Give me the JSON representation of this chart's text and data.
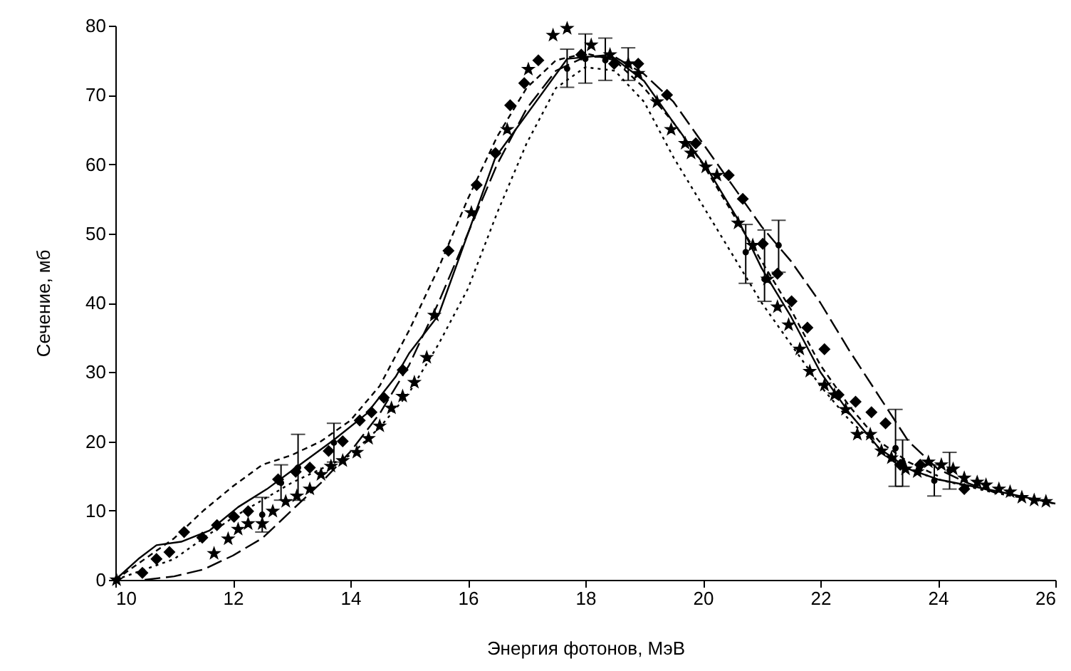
{
  "chart_data": {
    "type": "scatter",
    "xlabel": "Энергия фотонов, МэВ",
    "ylabel": "Сечение, мб",
    "xlim": [
      10,
      26
    ],
    "ylim": [
      0,
      80
    ],
    "xticks": [
      10,
      12,
      14,
      16,
      18,
      20,
      22,
      24,
      26
    ],
    "yticks": [
      0,
      10,
      20,
      30,
      40,
      50,
      60,
      70,
      80
    ],
    "grid": false,
    "series": [
      {
        "type": "line",
        "color": "#000000",
        "line_style": "solid",
        "marker": "none",
        "x": [
          10,
          10.39,
          10.7,
          11.12,
          11.6,
          12.09,
          12.58,
          13.14,
          13.72,
          14.28,
          14.77,
          15.0,
          15.5,
          16.47,
          17.69,
          18.42,
          19.0,
          19.5,
          20.1,
          20.6,
          21.0,
          21.5,
          22.0,
          22.5,
          23.0,
          23.5,
          24.0,
          25.0,
          26.0
        ],
        "values": [
          0,
          3,
          5,
          5.5,
          7.1,
          10.5,
          13.1,
          16.6,
          20.2,
          24,
          29.3,
          32.7,
          38.2,
          61,
          75.2,
          75.8,
          72,
          66,
          59,
          52,
          45,
          38,
          30,
          24,
          19,
          16,
          14.5,
          12.8,
          11
        ]
      },
      {
        "type": "line",
        "color": "#000000",
        "line_style": "dashed",
        "marker": "none",
        "x": [
          10.5,
          11,
          11.5,
          12,
          12.5,
          13,
          13.5,
          14,
          14.5,
          15,
          15.5,
          16,
          16.5,
          17,
          17.5,
          18,
          18.5,
          19,
          19.5,
          20,
          20.5,
          21,
          21.5,
          22,
          22.5,
          23,
          23.5,
          24,
          24.5,
          25
        ],
        "values": [
          0,
          0.5,
          1.5,
          3.5,
          6,
          10,
          14,
          18.5,
          24,
          31,
          40,
          50,
          60,
          68,
          73.5,
          75.5,
          75.5,
          73,
          69,
          63,
          57,
          51,
          46,
          40,
          33,
          26.5,
          20,
          16,
          14,
          12.5
        ]
      },
      {
        "type": "line",
        "color": "#000000",
        "line_style": "dotted",
        "marker": "none",
        "x": [
          10,
          11,
          12,
          13,
          14,
          14.5,
          15,
          15.5,
          16,
          16.5,
          17,
          17.5,
          18,
          18.5,
          19,
          19.5,
          20,
          20.5,
          21,
          21.5,
          22,
          22.5,
          23,
          23.5,
          24,
          25,
          26
        ],
        "values": [
          0,
          3,
          9,
          14,
          18,
          22,
          27,
          34,
          42,
          53,
          63,
          71,
          74,
          73.5,
          69,
          61,
          54,
          47,
          40,
          34,
          28,
          23,
          19,
          16,
          14.5,
          12.5,
          11
        ]
      },
      {
        "type": "line",
        "color": "#000000",
        "line_style": "dashed",
        "marker": "none",
        "x": [
          10,
          10.5,
          11,
          11.5,
          12,
          12.5,
          13,
          13.5,
          14,
          14.5,
          15,
          15.5,
          16,
          16.5,
          17,
          17.5,
          18,
          18.5,
          19,
          19.5,
          20,
          20.5,
          21,
          21.5,
          22,
          22.5,
          23,
          23.5,
          24
        ],
        "values": [
          0,
          3,
          6,
          10,
          13.5,
          16.6,
          18,
          20,
          23,
          28,
          36,
          45,
          55,
          64,
          71,
          75,
          76,
          75,
          71,
          66,
          60,
          53,
          46,
          39,
          31,
          25,
          20,
          17,
          15
        ]
      },
      {
        "type": "scatter",
        "color": "#000000",
        "marker": "star",
        "x": [
          10.02,
          11.68,
          11.92,
          12.09,
          12.26,
          12.5,
          12.68,
          12.9,
          13.09,
          13.31,
          13.5,
          13.67,
          13.87,
          14.11,
          14.31,
          14.5,
          14.7,
          14.89,
          15.09,
          15.3,
          15.43,
          16.06,
          16.67,
          17.03,
          17.45,
          17.69,
          18.1,
          18.42,
          18.73,
          18.9,
          19.22,
          19.46,
          19.7,
          19.8,
          20.05,
          20.24,
          20.6,
          20.85,
          21.1,
          21.27,
          21.46,
          21.65,
          21.82,
          22.07,
          22.24,
          22.43,
          22.63,
          22.85,
          23.04,
          23.21,
          23.45,
          23.65,
          23.84,
          24.06,
          24.26,
          24.45,
          24.67,
          24.82,
          25.04,
          25.23,
          25.43,
          25.64,
          25.84
        ],
        "values": [
          0,
          3.8,
          5.9,
          7.3,
          8.1,
          8.1,
          9.9,
          11.3,
          12.1,
          13.1,
          15.2,
          16.4,
          17.2,
          18.4,
          20.4,
          22.2,
          24.8,
          26.5,
          28.5,
          32.1,
          38.2,
          53,
          65,
          73.7,
          78.6,
          79.6,
          77.2,
          75.8,
          74.5,
          73.1,
          69,
          65,
          63,
          61.6,
          59.6,
          58.4,
          51.5,
          48.3,
          43.4,
          39.4,
          36.8,
          33.3,
          30.1,
          28.1,
          26.7,
          24.6,
          21,
          21,
          18.6,
          17.6,
          16,
          15.6,
          17,
          16.6,
          16,
          14.7,
          14.1,
          13.7,
          13.1,
          12.7,
          11.9,
          11.5,
          11.3
        ]
      },
      {
        "type": "scatter",
        "color": "#000000",
        "marker": "diamond",
        "x": [
          10.46,
          10.7,
          10.92,
          11.17,
          11.48,
          11.73,
          12.02,
          12.26,
          12.77,
          13.07,
          13.31,
          13.63,
          13.87,
          14.16,
          14.36,
          14.57,
          14.89,
          15.67,
          16.15,
          16.47,
          16.72,
          16.96,
          17.2,
          17.93,
          18.49,
          18.9,
          19.39,
          19.88,
          20.44,
          20.68,
          21.02,
          21.27,
          21.51,
          21.78,
          22.07,
          22.31,
          22.6,
          22.87,
          23.11,
          23.36,
          23.7,
          24.45
        ],
        "values": [
          1,
          3,
          4,
          6.9,
          6.1,
          7.9,
          9.1,
          9.9,
          14.5,
          15.6,
          16.2,
          18.6,
          20,
          23,
          24.2,
          26.3,
          30.3,
          47.5,
          57,
          61.6,
          68.5,
          71.7,
          75,
          75.8,
          74.5,
          74.5,
          70,
          63,
          58.4,
          55,
          48.5,
          44.2,
          40.2,
          36.4,
          33.3,
          26.7,
          25.7,
          24.2,
          22.6,
          16.6,
          16.6,
          13.1
        ]
      },
      {
        "type": "scatter",
        "color": "#000000",
        "marker": "circle",
        "x": [
          12.5,
          12.82,
          13.11,
          13.72,
          17.69,
          18.0,
          18.34,
          18.73,
          20.73,
          21.05,
          21.29,
          23.28,
          23.4,
          23.94,
          24.2
        ],
        "values": [
          9.4,
          14,
          16.2,
          19.8,
          73.8,
          75.2,
          75,
          74.5,
          47.3,
          43.4,
          48.3,
          19,
          17,
          14.3,
          15.8
        ],
        "errors": [
          [
            6.9,
            11.9
          ],
          [
            11.5,
            16.6
          ],
          [
            11.5,
            21
          ],
          [
            17,
            22.6
          ],
          [
            71.1,
            76.6
          ],
          [
            71.7,
            78.8
          ],
          [
            72.1,
            78.2
          ],
          [
            72.1,
            76.8
          ],
          [
            42.8,
            51.3
          ],
          [
            40.2,
            50.5
          ],
          [
            44.4,
            51.9
          ],
          [
            13.5,
            24.6
          ],
          [
            13.5,
            20.2
          ],
          [
            12.1,
            16.6
          ],
          [
            13.1,
            18.4
          ]
        ]
      }
    ]
  }
}
